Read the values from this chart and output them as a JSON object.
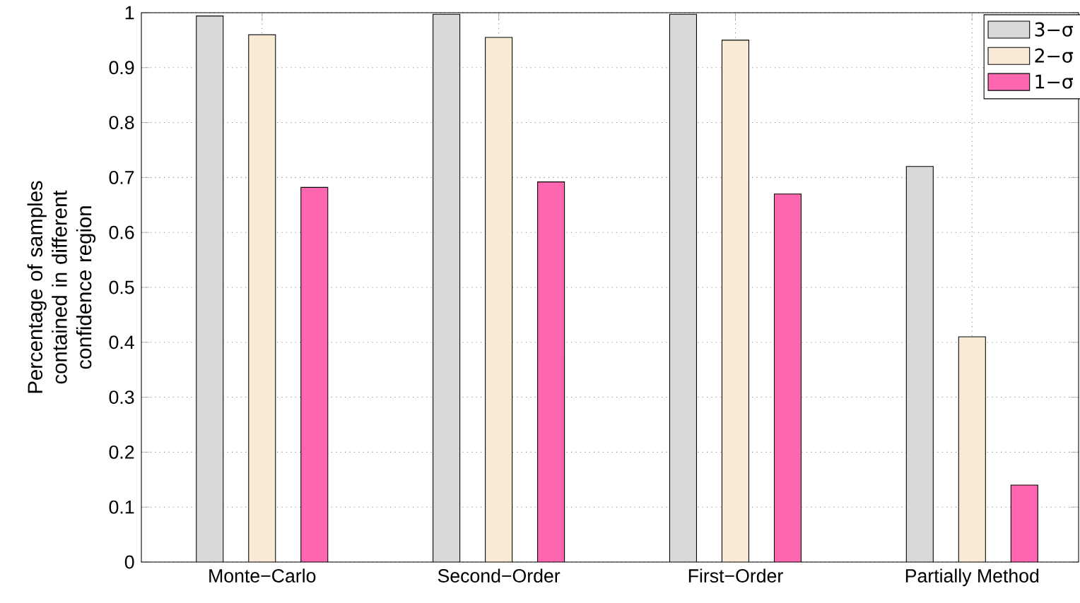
{
  "chart_data": {
    "type": "bar",
    "ylabel": "Percentage of samples contained in different confidence region",
    "categories": [
      "Monte−Carlo",
      "Second−Order",
      "First−Order",
      "Partially Method"
    ],
    "series": [
      {
        "name": "3−σ",
        "color": "#d9d9d9",
        "values": [
          0.994,
          0.997,
          0.997,
          0.72
        ]
      },
      {
        "name": "2−σ",
        "color": "#f9ead6",
        "values": [
          0.96,
          0.955,
          0.95,
          0.41
        ]
      },
      {
        "name": "1−σ",
        "color": "#ff66b0",
        "values": [
          0.682,
          0.692,
          0.67,
          0.14
        ]
      }
    ],
    "ylim": [
      0,
      1
    ],
    "yticks": [
      0,
      0.1,
      0.2,
      0.3,
      0.4,
      0.5,
      0.6,
      0.7,
      0.8,
      0.9,
      1
    ],
    "grid": true,
    "legend": "top right"
  }
}
